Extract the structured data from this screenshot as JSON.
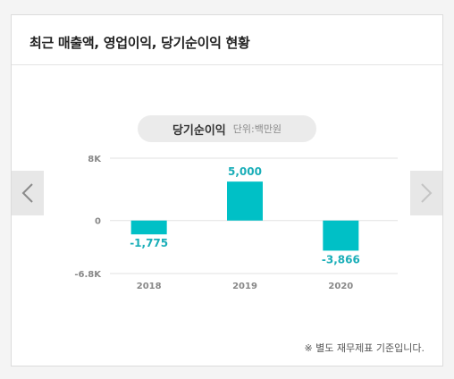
{
  "card": {
    "title": "최근 매출액, 영업이익, 당기순이익 현황"
  },
  "pill": {
    "title": "당기순이익",
    "unit": "단위:백만원"
  },
  "nav": {
    "prev_icon": "chevron-left-icon",
    "next_icon": "chevron-right-icon"
  },
  "footnote": "※ 별도 재무제표 기준입니다.",
  "colors": {
    "bar": "#00c0c6",
    "label": "#1aaeb8",
    "tick": "#888888",
    "grid": "#e2e2e2"
  },
  "chart_data": {
    "type": "bar",
    "title": "당기순이익",
    "categories": [
      "2018",
      "2019",
      "2020"
    ],
    "values": [
      -1775,
      5000,
      -3866
    ],
    "value_labels": [
      "-1,775",
      "5,000",
      "-3,866"
    ],
    "ylim": [
      -6800,
      8000
    ],
    "yticks": [
      8000,
      0,
      -6800
    ],
    "ytick_labels": [
      "8K",
      "0",
      "-6.8K"
    ],
    "grid": true,
    "legend": "none"
  }
}
